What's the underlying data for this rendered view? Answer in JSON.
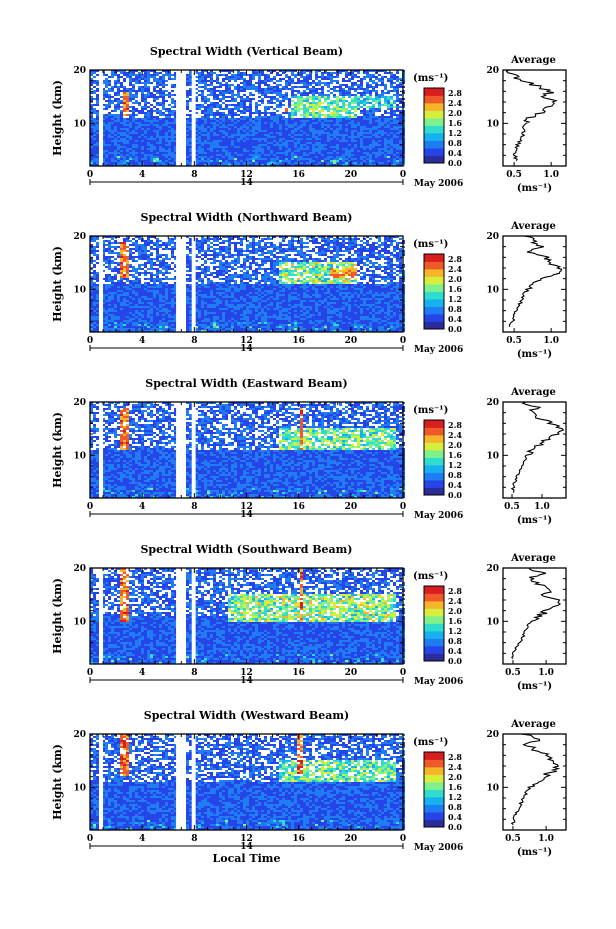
{
  "chart_data": {
    "type": "heatmap",
    "common": {
      "x_ticks": [
        "0",
        "4",
        "8",
        "12",
        "16",
        "20",
        "0"
      ],
      "x_tick_values": [
        0,
        4,
        8,
        12,
        16,
        20,
        24
      ],
      "xlim": [
        0,
        24
      ],
      "y_ticks": [
        "20",
        "10"
      ],
      "y_tick_values": [
        20,
        10
      ],
      "ylim": [
        2,
        20
      ],
      "ylabel": "Height (km)",
      "day_label": "14",
      "date_label": "May 2006",
      "xlabel": "Local Time",
      "colorbar_unit": "(ms⁻¹)",
      "colorbar_ticks": [
        "2.8",
        "2.4",
        "2.0",
        "1.6",
        "1.2",
        "0.8",
        "0.4",
        "0.0"
      ],
      "colorbar_values": [
        2.8,
        2.4,
        2.0,
        1.6,
        1.2,
        0.8,
        0.4,
        0.0
      ],
      "colorbar_range": [
        0,
        3.0
      ],
      "colorbar_colors": [
        "#2b2b9a",
        "#2545e8",
        "#1f7cf2",
        "#17b1f0",
        "#2fdccd",
        "#7ef08c",
        "#d8ee3c",
        "#f6b52a",
        "#ee5a2a",
        "#d81e1e"
      ],
      "data_gaps_hours": [
        [
          0.7,
          1.0
        ],
        [
          6.6,
          7.3
        ],
        [
          7.8,
          8.1
        ]
      ],
      "avg_title": "Average",
      "avg_unit": "(ms⁻¹)",
      "avg_y_ticks": [
        "20",
        "10"
      ]
    },
    "panels": [
      {
        "title": "Spectral Width (Vertical Beam)",
        "enhanced_regions": [
          {
            "t": [
              2.5,
              3.0
            ],
            "h": [
              11,
              16
            ],
            "level": 2.8
          },
          {
            "t": [
              14.8,
              15.2
            ],
            "h": [
              12,
              13
            ],
            "level": 2.6
          },
          {
            "t": [
              15.5,
              20.5
            ],
            "h": [
              11,
              15
            ],
            "level": 1.9
          },
          {
            "t": [
              20.5,
              23.5
            ],
            "h": [
              13,
              15
            ],
            "level": 1.5
          }
        ],
        "avg_x_ticks": [
          "0.5",
          "1.0"
        ],
        "avg_x_values": [
          0.5,
          1.0
        ],
        "avg_xlim": [
          0.35,
          1.2
        ],
        "avg_profile": {
          "height_km": [
            3,
            4,
            5,
            6,
            7,
            8,
            9,
            10,
            11,
            12,
            13,
            14,
            15,
            16,
            17,
            18,
            19,
            20
          ],
          "width": [
            0.55,
            0.5,
            0.52,
            0.55,
            0.6,
            0.62,
            0.63,
            0.66,
            0.7,
            0.85,
            0.95,
            1.05,
            0.92,
            1.0,
            0.82,
            0.62,
            0.5,
            0.45
          ]
        }
      },
      {
        "title": "Spectral Width (Northward Beam)",
        "enhanced_regions": [
          {
            "t": [
              2.4,
              3.0
            ],
            "h": [
              12,
              19
            ],
            "level": 2.8
          },
          {
            "t": [
              14.5,
              20.5
            ],
            "h": [
              11,
              15
            ],
            "level": 2.0
          },
          {
            "t": [
              18.5,
              20.5
            ],
            "h": [
              12,
              14
            ],
            "level": 2.6
          }
        ],
        "avg_x_ticks": [
          "0.5",
          "1.0"
        ],
        "avg_x_values": [
          0.5,
          1.0
        ],
        "avg_xlim": [
          0.35,
          1.2
        ],
        "avg_profile": {
          "height_km": [
            3,
            4,
            5,
            6,
            7,
            8,
            9,
            10,
            11,
            12,
            13,
            14,
            15,
            16,
            17,
            18,
            19,
            20
          ],
          "width": [
            0.45,
            0.48,
            0.5,
            0.53,
            0.57,
            0.6,
            0.63,
            0.68,
            0.78,
            0.9,
            1.05,
            1.12,
            1.0,
            0.95,
            0.72,
            0.9,
            0.75,
            0.7
          ]
        }
      },
      {
        "title": "Spectral Width (Eastward Beam)",
        "enhanced_regions": [
          {
            "t": [
              2.4,
              3.0
            ],
            "h": [
              11,
              19
            ],
            "level": 2.8
          },
          {
            "t": [
              16.0,
              16.4
            ],
            "h": [
              11,
              19
            ],
            "level": 2.8
          },
          {
            "t": [
              14.5,
              23.5
            ],
            "h": [
              11,
              15
            ],
            "level": 1.9
          }
        ],
        "avg_x_ticks": [
          "0.5",
          "1.0"
        ],
        "avg_x_values": [
          0.5,
          1.0
        ],
        "avg_xlim": [
          0.35,
          1.4
        ],
        "avg_profile": {
          "height_km": [
            3,
            4,
            5,
            6,
            7,
            8,
            9,
            10,
            11,
            12,
            13,
            14,
            15,
            16,
            17,
            18,
            19,
            20
          ],
          "width": [
            0.5,
            0.52,
            0.55,
            0.58,
            0.62,
            0.66,
            0.7,
            0.75,
            0.85,
            0.95,
            1.1,
            1.25,
            1.3,
            1.15,
            0.95,
            0.8,
            0.9,
            0.7
          ]
        }
      },
      {
        "title": "Spectral Width (Southward Beam)",
        "enhanced_regions": [
          {
            "t": [
              2.4,
              3.0
            ],
            "h": [
              10,
              20
            ],
            "level": 2.8
          },
          {
            "t": [
              16.0,
              16.4
            ],
            "h": [
              10,
              20
            ],
            "level": 2.8
          },
          {
            "t": [
              10.5,
              23.5
            ],
            "h": [
              10,
              15
            ],
            "level": 2.0
          }
        ],
        "avg_x_ticks": [
          "0.5",
          "1.0"
        ],
        "avg_x_values": [
          0.5,
          1.0
        ],
        "avg_xlim": [
          0.35,
          1.3
        ],
        "avg_profile": {
          "height_km": [
            3,
            4,
            5,
            6,
            7,
            8,
            9,
            10,
            11,
            12,
            13,
            14,
            15,
            16,
            17,
            18,
            19,
            20
          ],
          "width": [
            0.48,
            0.5,
            0.55,
            0.6,
            0.65,
            0.68,
            0.72,
            0.78,
            0.9,
            1.0,
            1.15,
            1.2,
            0.95,
            1.1,
            0.85,
            0.75,
            0.95,
            0.7
          ]
        }
      },
      {
        "title": "Spectral Width (Westward Beam)",
        "enhanced_regions": [
          {
            "t": [
              2.4,
              3.0
            ],
            "h": [
              12,
              20
            ],
            "level": 2.8
          },
          {
            "t": [
              15.8,
              16.3
            ],
            "h": [
              12,
              20
            ],
            "level": 2.8
          },
          {
            "t": [
              14.5,
              23.5
            ],
            "h": [
              11,
              15
            ],
            "level": 1.9
          }
        ],
        "avg_x_ticks": [
          "0.5",
          "1.0"
        ],
        "avg_x_values": [
          0.5,
          1.0
        ],
        "avg_xlim": [
          0.35,
          1.3
        ],
        "avg_profile": {
          "height_km": [
            3,
            4,
            5,
            6,
            7,
            8,
            9,
            10,
            11,
            12,
            13,
            14,
            15,
            16,
            17,
            18,
            19,
            20
          ],
          "width": [
            0.5,
            0.52,
            0.55,
            0.58,
            0.62,
            0.66,
            0.7,
            0.75,
            0.85,
            0.95,
            1.1,
            1.2,
            1.05,
            1.0,
            0.85,
            0.7,
            0.9,
            0.65
          ]
        }
      }
    ]
  }
}
